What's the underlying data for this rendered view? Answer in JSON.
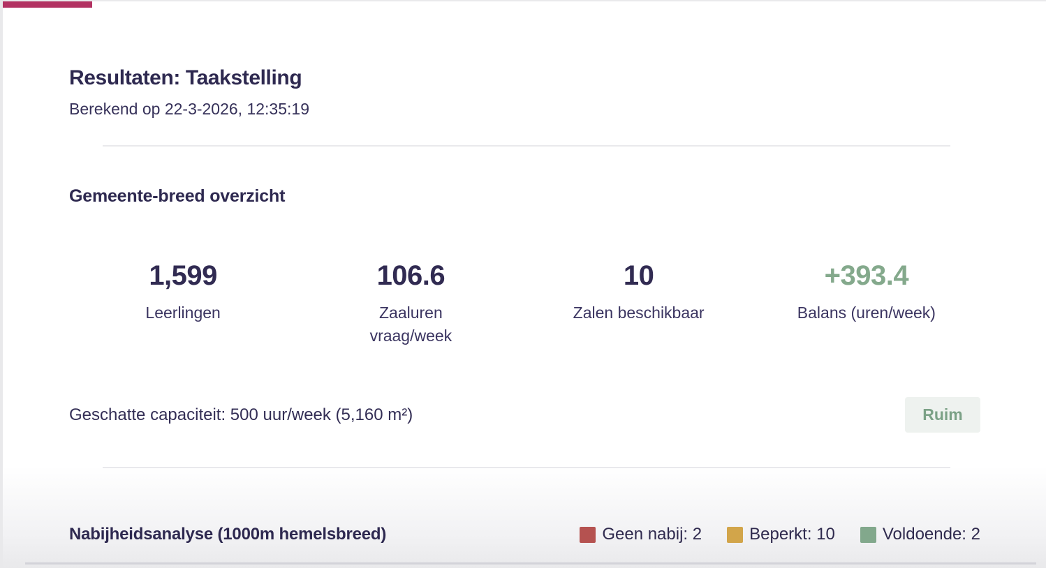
{
  "header": {
    "title": "Resultaten: Taakstelling",
    "calculated_at": "Berekend op 22-3-2026, 12:35:19"
  },
  "overview": {
    "heading": "Gemeente-breed overzicht",
    "stats": [
      {
        "value": "1,599",
        "label": "Leerlingen"
      },
      {
        "value": "106.6",
        "label": "Zaaluren\nvraag/week"
      },
      {
        "value": "10",
        "label": "Zalen beschikbaar"
      },
      {
        "value": "+393.4",
        "label": "Balans (uren/week)",
        "value_color": "#84a98c"
      }
    ],
    "capacity": {
      "text": "Geschatte capaciteit: 500 uur/week (5,160 m²)",
      "badge_label": "Ruim",
      "badge_text_color": "#7ba186",
      "badge_bg_color": "#eef2ef"
    }
  },
  "proximity": {
    "heading": "Nabijheidsanalyse (1000m hemelsbreed)",
    "legend": [
      {
        "label": "Geen nabij: 2",
        "color": "#b55250"
      },
      {
        "label": "Beperkt: 10",
        "color": "#d2a54a"
      },
      {
        "label": "Voldoende: 2",
        "color": "#82a88c"
      }
    ]
  },
  "accent": {
    "top_bar_color": "#b23262"
  }
}
